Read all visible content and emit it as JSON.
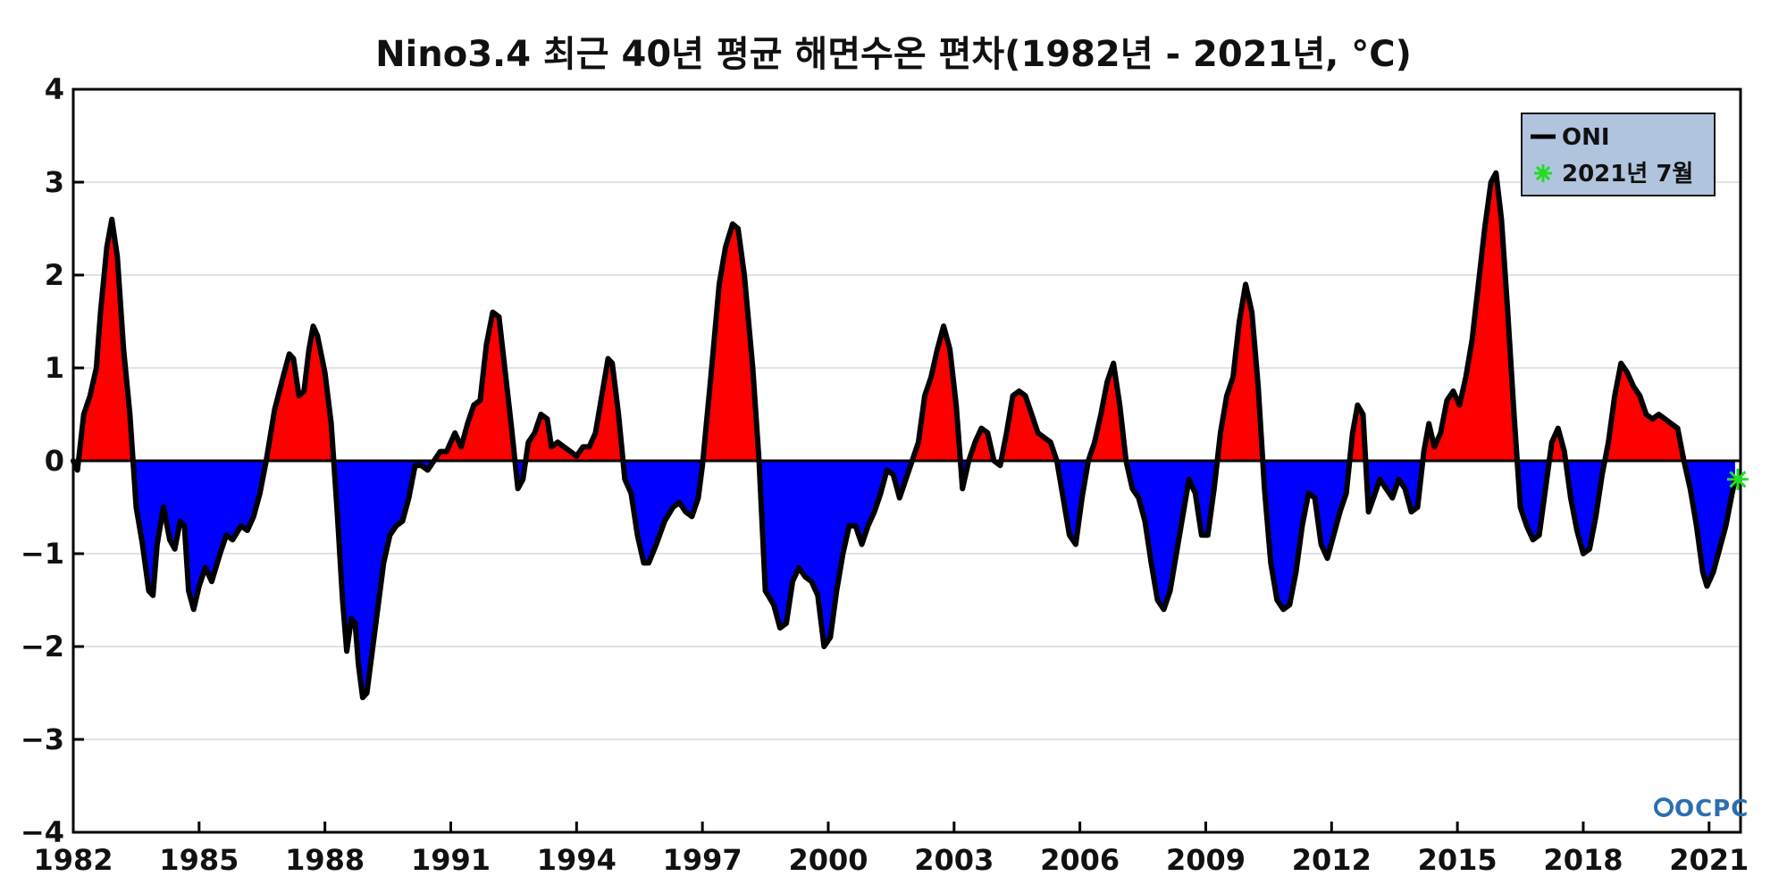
{
  "chart_data": {
    "type": "area",
    "title": "Nino3.4 최근 40년 평균 해면수온 편차(1982년 - 2021년, °C)",
    "xlabel": "",
    "ylabel": "",
    "xlim": [
      1982.0,
      2021.75
    ],
    "ylim": [
      -4,
      4
    ],
    "x_ticks": [
      1982,
      1985,
      1988,
      1991,
      1994,
      1997,
      2000,
      2003,
      2006,
      2009,
      2012,
      2015,
      2018,
      2021
    ],
    "x_tick_labels": [
      "1982",
      "1985",
      "1988",
      "1991",
      "1994",
      "1997",
      "2000",
      "2003",
      "2006",
      "2009",
      "2012",
      "2015",
      "2018",
      "2021"
    ],
    "y_ticks": [
      4,
      3,
      2,
      1,
      0,
      -1,
      -2,
      -3,
      -4
    ],
    "y_tick_labels": [
      "4",
      "3",
      "2",
      "1",
      "0",
      "−1",
      "−2",
      "−3",
      "−4"
    ],
    "grid": true,
    "fill_colors": {
      "positive": "#ff0000",
      "negative": "#0000ff"
    },
    "line_color": "#000000",
    "legend_position": "top-right",
    "legend": [
      {
        "label": "ONI",
        "marker": "line",
        "color": "#000000"
      },
      {
        "label": "2021년 7월",
        "marker": "asterisk",
        "color": "#22dd22"
      }
    ],
    "series": [
      {
        "name": "ONI",
        "points": [
          [
            1982.0,
            0.0
          ],
          [
            1982.1,
            -0.1
          ],
          [
            1982.25,
            0.5
          ],
          [
            1982.4,
            0.7
          ],
          [
            1982.55,
            1.0
          ],
          [
            1982.65,
            1.6
          ],
          [
            1982.8,
            2.3
          ],
          [
            1982.92,
            2.6
          ],
          [
            1983.05,
            2.2
          ],
          [
            1983.2,
            1.2
          ],
          [
            1983.35,
            0.5
          ],
          [
            1983.5,
            -0.5
          ],
          [
            1983.65,
            -0.9
          ],
          [
            1983.8,
            -1.4
          ],
          [
            1983.9,
            -1.45
          ],
          [
            1984.0,
            -0.9
          ],
          [
            1984.15,
            -0.5
          ],
          [
            1984.3,
            -0.85
          ],
          [
            1984.42,
            -0.95
          ],
          [
            1984.55,
            -0.65
          ],
          [
            1984.65,
            -0.7
          ],
          [
            1984.75,
            -1.4
          ],
          [
            1984.87,
            -1.6
          ],
          [
            1985.0,
            -1.35
          ],
          [
            1985.15,
            -1.15
          ],
          [
            1985.3,
            -1.3
          ],
          [
            1985.5,
            -1.0
          ],
          [
            1985.65,
            -0.8
          ],
          [
            1985.8,
            -0.85
          ],
          [
            1986.0,
            -0.7
          ],
          [
            1986.15,
            -0.75
          ],
          [
            1986.3,
            -0.6
          ],
          [
            1986.45,
            -0.35
          ],
          [
            1986.6,
            0.0
          ],
          [
            1986.8,
            0.55
          ],
          [
            1987.0,
            0.9
          ],
          [
            1987.15,
            1.15
          ],
          [
            1987.25,
            1.1
          ],
          [
            1987.38,
            0.7
          ],
          [
            1987.5,
            0.75
          ],
          [
            1987.62,
            1.2
          ],
          [
            1987.72,
            1.45
          ],
          [
            1987.82,
            1.35
          ],
          [
            1988.0,
            0.95
          ],
          [
            1988.15,
            0.4
          ],
          [
            1988.3,
            -0.6
          ],
          [
            1988.42,
            -1.5
          ],
          [
            1988.52,
            -2.05
          ],
          [
            1988.63,
            -1.7
          ],
          [
            1988.72,
            -1.75
          ],
          [
            1988.8,
            -2.2
          ],
          [
            1988.9,
            -2.55
          ],
          [
            1989.0,
            -2.5
          ],
          [
            1989.2,
            -1.8
          ],
          [
            1989.4,
            -1.1
          ],
          [
            1989.55,
            -0.8
          ],
          [
            1989.7,
            -0.7
          ],
          [
            1989.85,
            -0.65
          ],
          [
            1990.0,
            -0.4
          ],
          [
            1990.15,
            -0.05
          ],
          [
            1990.3,
            -0.05
          ],
          [
            1990.45,
            -0.1
          ],
          [
            1990.6,
            0.0
          ],
          [
            1990.75,
            0.1
          ],
          [
            1990.9,
            0.1
          ],
          [
            1991.0,
            0.2
          ],
          [
            1991.1,
            0.3
          ],
          [
            1991.25,
            0.15
          ],
          [
            1991.4,
            0.4
          ],
          [
            1991.55,
            0.6
          ],
          [
            1991.7,
            0.65
          ],
          [
            1991.85,
            1.25
          ],
          [
            1992.0,
            1.6
          ],
          [
            1992.15,
            1.55
          ],
          [
            1992.3,
            0.95
          ],
          [
            1992.45,
            0.35
          ],
          [
            1992.6,
            -0.3
          ],
          [
            1992.72,
            -0.2
          ],
          [
            1992.85,
            0.2
          ],
          [
            1993.0,
            0.3
          ],
          [
            1993.15,
            0.5
          ],
          [
            1993.3,
            0.45
          ],
          [
            1993.4,
            0.15
          ],
          [
            1993.55,
            0.2
          ],
          [
            1993.7,
            0.15
          ],
          [
            1993.85,
            0.1
          ],
          [
            1994.0,
            0.05
          ],
          [
            1994.15,
            0.15
          ],
          [
            1994.3,
            0.15
          ],
          [
            1994.45,
            0.3
          ],
          [
            1994.6,
            0.7
          ],
          [
            1994.75,
            1.1
          ],
          [
            1994.85,
            1.05
          ],
          [
            1995.0,
            0.5
          ],
          [
            1995.15,
            -0.2
          ],
          [
            1995.3,
            -0.35
          ],
          [
            1995.45,
            -0.8
          ],
          [
            1995.6,
            -1.1
          ],
          [
            1995.72,
            -1.1
          ],
          [
            1995.9,
            -0.9
          ],
          [
            1996.1,
            -0.65
          ],
          [
            1996.3,
            -0.5
          ],
          [
            1996.45,
            -0.45
          ],
          [
            1996.6,
            -0.55
          ],
          [
            1996.75,
            -0.6
          ],
          [
            1996.9,
            -0.4
          ],
          [
            1997.0,
            -0.05
          ],
          [
            1997.2,
            0.9
          ],
          [
            1997.4,
            1.9
          ],
          [
            1997.55,
            2.3
          ],
          [
            1997.72,
            2.55
          ],
          [
            1997.85,
            2.5
          ],
          [
            1998.0,
            2.0
          ],
          [
            1998.2,
            1.0
          ],
          [
            1998.35,
            0.0
          ],
          [
            1998.5,
            -1.4
          ],
          [
            1998.7,
            -1.55
          ],
          [
            1998.85,
            -1.8
          ],
          [
            1999.0,
            -1.75
          ],
          [
            1999.15,
            -1.3
          ],
          [
            1999.3,
            -1.15
          ],
          [
            1999.45,
            -1.25
          ],
          [
            1999.6,
            -1.3
          ],
          [
            1999.75,
            -1.45
          ],
          [
            1999.9,
            -2.0
          ],
          [
            2000.05,
            -1.9
          ],
          [
            2000.2,
            -1.4
          ],
          [
            2000.35,
            -1.0
          ],
          [
            2000.5,
            -0.7
          ],
          [
            2000.65,
            -0.7
          ],
          [
            2000.8,
            -0.9
          ],
          [
            2000.95,
            -0.7
          ],
          [
            2001.1,
            -0.55
          ],
          [
            2001.25,
            -0.35
          ],
          [
            2001.4,
            -0.1
          ],
          [
            2001.55,
            -0.15
          ],
          [
            2001.7,
            -0.4
          ],
          [
            2001.85,
            -0.2
          ],
          [
            2002.0,
            0.0
          ],
          [
            2002.15,
            0.2
          ],
          [
            2002.3,
            0.7
          ],
          [
            2002.45,
            0.9
          ],
          [
            2002.6,
            1.2
          ],
          [
            2002.75,
            1.45
          ],
          [
            2002.9,
            1.2
          ],
          [
            2003.05,
            0.6
          ],
          [
            2003.2,
            -0.3
          ],
          [
            2003.35,
            0.0
          ],
          [
            2003.5,
            0.2
          ],
          [
            2003.65,
            0.35
          ],
          [
            2003.8,
            0.3
          ],
          [
            2003.95,
            0.0
          ],
          [
            2004.1,
            -0.05
          ],
          [
            2004.25,
            0.3
          ],
          [
            2004.4,
            0.7
          ],
          [
            2004.55,
            0.75
          ],
          [
            2004.7,
            0.7
          ],
          [
            2004.85,
            0.5
          ],
          [
            2005.0,
            0.3
          ],
          [
            2005.15,
            0.25
          ],
          [
            2005.3,
            0.2
          ],
          [
            2005.45,
            0.0
          ],
          [
            2005.6,
            -0.4
          ],
          [
            2005.75,
            -0.8
          ],
          [
            2005.9,
            -0.9
          ],
          [
            2006.05,
            -0.4
          ],
          [
            2006.2,
            0.0
          ],
          [
            2006.35,
            0.2
          ],
          [
            2006.5,
            0.5
          ],
          [
            2006.65,
            0.85
          ],
          [
            2006.8,
            1.05
          ],
          [
            2006.95,
            0.6
          ],
          [
            2007.1,
            0.0
          ],
          [
            2007.25,
            -0.3
          ],
          [
            2007.4,
            -0.4
          ],
          [
            2007.55,
            -0.65
          ],
          [
            2007.7,
            -1.1
          ],
          [
            2007.85,
            -1.5
          ],
          [
            2008.0,
            -1.6
          ],
          [
            2008.15,
            -1.4
          ],
          [
            2008.3,
            -1.0
          ],
          [
            2008.45,
            -0.6
          ],
          [
            2008.6,
            -0.2
          ],
          [
            2008.75,
            -0.35
          ],
          [
            2008.9,
            -0.8
          ],
          [
            2009.05,
            -0.8
          ],
          [
            2009.2,
            -0.3
          ],
          [
            2009.35,
            0.3
          ],
          [
            2009.5,
            0.7
          ],
          [
            2009.65,
            0.9
          ],
          [
            2009.8,
            1.5
          ],
          [
            2009.95,
            1.9
          ],
          [
            2010.1,
            1.6
          ],
          [
            2010.25,
            0.8
          ],
          [
            2010.4,
            -0.3
          ],
          [
            2010.55,
            -1.1
          ],
          [
            2010.7,
            -1.5
          ],
          [
            2010.85,
            -1.6
          ],
          [
            2011.0,
            -1.55
          ],
          [
            2011.15,
            -1.2
          ],
          [
            2011.3,
            -0.7
          ],
          [
            2011.45,
            -0.35
          ],
          [
            2011.6,
            -0.4
          ],
          [
            2011.75,
            -0.9
          ],
          [
            2011.9,
            -1.05
          ],
          [
            2012.05,
            -0.8
          ],
          [
            2012.2,
            -0.55
          ],
          [
            2012.35,
            -0.35
          ],
          [
            2012.5,
            0.3
          ],
          [
            2012.62,
            0.6
          ],
          [
            2012.75,
            0.5
          ],
          [
            2012.88,
            -0.55
          ],
          [
            2013.0,
            -0.4
          ],
          [
            2013.15,
            -0.2
          ],
          [
            2013.3,
            -0.3
          ],
          [
            2013.45,
            -0.4
          ],
          [
            2013.6,
            -0.2
          ],
          [
            2013.75,
            -0.3
          ],
          [
            2013.9,
            -0.55
          ],
          [
            2014.05,
            -0.5
          ],
          [
            2014.2,
            0.1
          ],
          [
            2014.32,
            0.4
          ],
          [
            2014.45,
            0.15
          ],
          [
            2014.6,
            0.3
          ],
          [
            2014.75,
            0.65
          ],
          [
            2014.9,
            0.75
          ],
          [
            2015.05,
            0.6
          ],
          [
            2015.2,
            0.9
          ],
          [
            2015.35,
            1.3
          ],
          [
            2015.5,
            1.9
          ],
          [
            2015.65,
            2.5
          ],
          [
            2015.8,
            3.0
          ],
          [
            2015.92,
            3.1
          ],
          [
            2016.05,
            2.6
          ],
          [
            2016.2,
            1.6
          ],
          [
            2016.35,
            0.5
          ],
          [
            2016.5,
            -0.5
          ],
          [
            2016.65,
            -0.7
          ],
          [
            2016.8,
            -0.85
          ],
          [
            2016.95,
            -0.8
          ],
          [
            2017.1,
            -0.3
          ],
          [
            2017.25,
            0.2
          ],
          [
            2017.4,
            0.35
          ],
          [
            2017.55,
            0.1
          ],
          [
            2017.7,
            -0.4
          ],
          [
            2017.85,
            -0.75
          ],
          [
            2018.0,
            -1.0
          ],
          [
            2018.15,
            -0.95
          ],
          [
            2018.3,
            -0.6
          ],
          [
            2018.45,
            -0.15
          ],
          [
            2018.6,
            0.2
          ],
          [
            2018.75,
            0.7
          ],
          [
            2018.9,
            1.05
          ],
          [
            2019.05,
            0.95
          ],
          [
            2019.2,
            0.8
          ],
          [
            2019.35,
            0.7
          ],
          [
            2019.5,
            0.5
          ],
          [
            2019.65,
            0.45
          ],
          [
            2019.8,
            0.5
          ],
          [
            2019.95,
            0.45
          ],
          [
            2020.1,
            0.4
          ],
          [
            2020.25,
            0.35
          ],
          [
            2020.4,
            0.0
          ],
          [
            2020.55,
            -0.3
          ],
          [
            2020.7,
            -0.7
          ],
          [
            2020.85,
            -1.2
          ],
          [
            2020.95,
            -1.35
          ],
          [
            2021.1,
            -1.2
          ],
          [
            2021.25,
            -0.95
          ],
          [
            2021.4,
            -0.7
          ],
          [
            2021.55,
            -0.35
          ],
          [
            2021.62,
            -0.2
          ]
        ]
      }
    ],
    "highlight_point": {
      "label": "2021년 7월",
      "x": 2021.62,
      "y": -0.2
    }
  },
  "logo": {
    "text": "OCPC",
    "icon": "ocpc-logo-icon"
  }
}
